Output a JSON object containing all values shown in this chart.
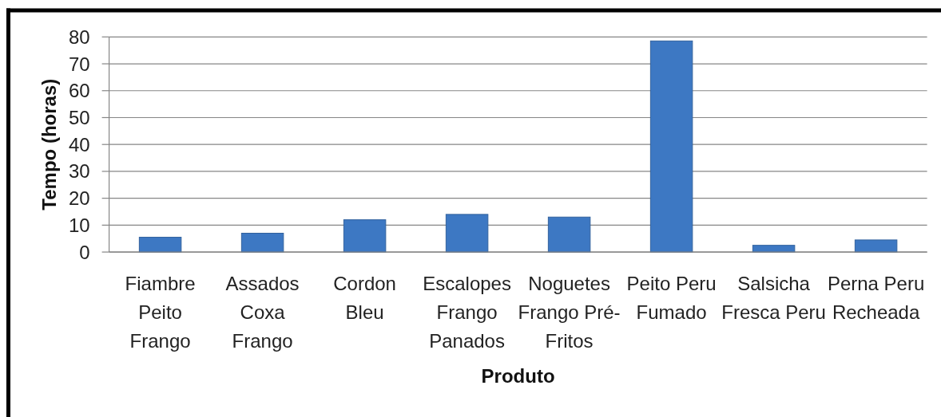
{
  "chart_data": {
    "type": "bar",
    "xlabel": "Produto",
    "ylabel": "Tempo (horas)",
    "categories": [
      "Fiambre Peito Frango",
      "Assados Coxa Frango",
      "Cordon Bleu",
      "Escalopes Frango Panados",
      "Noguetes Frango Pré-Fritos",
      "Peito Peru Fumado",
      "Salsicha Fresca Peru",
      "Perna Peru Recheada"
    ],
    "values": [
      5.5,
      7,
      12,
      14,
      13,
      78.5,
      2.5,
      4.5
    ],
    "color": "#3d78c3",
    "ylim": [
      0,
      80
    ],
    "yticks": [
      0,
      10,
      20,
      30,
      40,
      50,
      60,
      70,
      80
    ],
    "grid": "y"
  }
}
